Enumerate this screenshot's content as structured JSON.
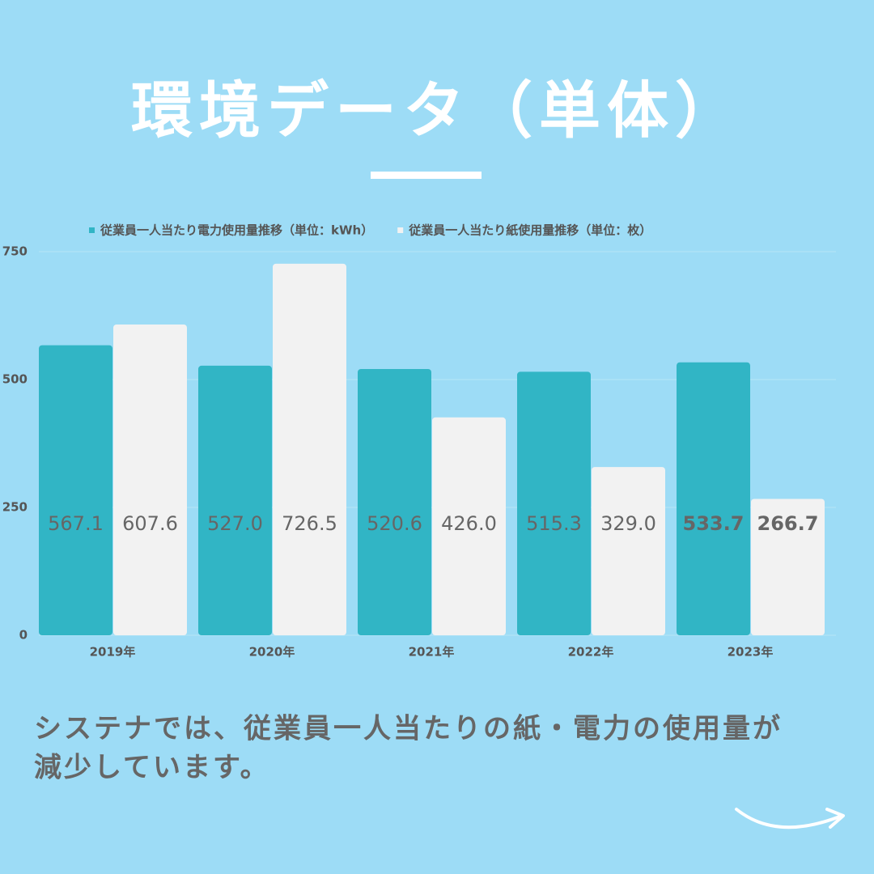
{
  "chart_data": {
    "type": "bar",
    "title": "環境データ（単体）",
    "categories": [
      "2019年",
      "2020年",
      "2021年",
      "2022年",
      "2023年"
    ],
    "series": [
      {
        "name": "従業員一人当たり電力使用量推移（単位：kWh）",
        "color": "#31b5c5",
        "values": [
          567.1,
          527.0,
          520.6,
          515.3,
          533.7
        ],
        "value_labels": [
          "567.1",
          "527.0",
          "520.6",
          "515.3",
          "533.7"
        ]
      },
      {
        "name": "従業員一人当たり紙使用量推移（単位：枚）",
        "color": "#f2f2f2",
        "values": [
          607.6,
          726.5,
          426.0,
          329.0,
          266.7
        ],
        "value_labels": [
          "607.6",
          "726.5",
          "426.0",
          "329.0",
          "266.7"
        ]
      }
    ],
    "ylim": [
      0,
      750
    ],
    "yticks": [
      0,
      250,
      500,
      750
    ],
    "grid": true,
    "caption": [
      "システナでは、従業員一人当たりの紙・電力の使用量が",
      "減少しています。"
    ]
  }
}
